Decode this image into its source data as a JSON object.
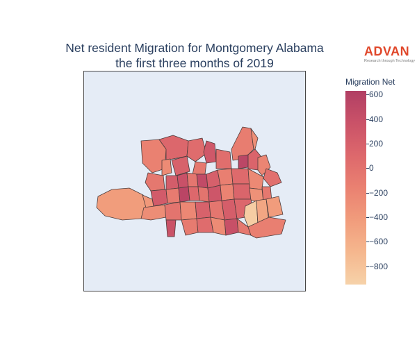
{
  "title_lines": [
    "Net resident Migration for Montgomery Alabama",
    "the first three months of 2019"
  ],
  "logo": {
    "word": "ADVAN",
    "tagline": "Research through Technology",
    "color": "#e0472a"
  },
  "map": {
    "background": "#e5ecf6",
    "border_color": "#444444",
    "tract_stroke": "#4a3b3b"
  },
  "colorbar": {
    "title": "Migration Net",
    "min": -950,
    "max": 630,
    "ticks": [
      600,
      400,
      200,
      0,
      -200,
      -400,
      -600,
      -800
    ],
    "tick_labels": [
      "600",
      "400",
      "200",
      "0",
      "−200",
      "−400",
      "−600",
      "−800"
    ],
    "colorscale": [
      "#f6d2a9",
      "#f5b78e",
      "#f19c7c",
      "#ea8171",
      "#dd686c",
      "#ca5268",
      "#b13f64"
    ]
  }
}
